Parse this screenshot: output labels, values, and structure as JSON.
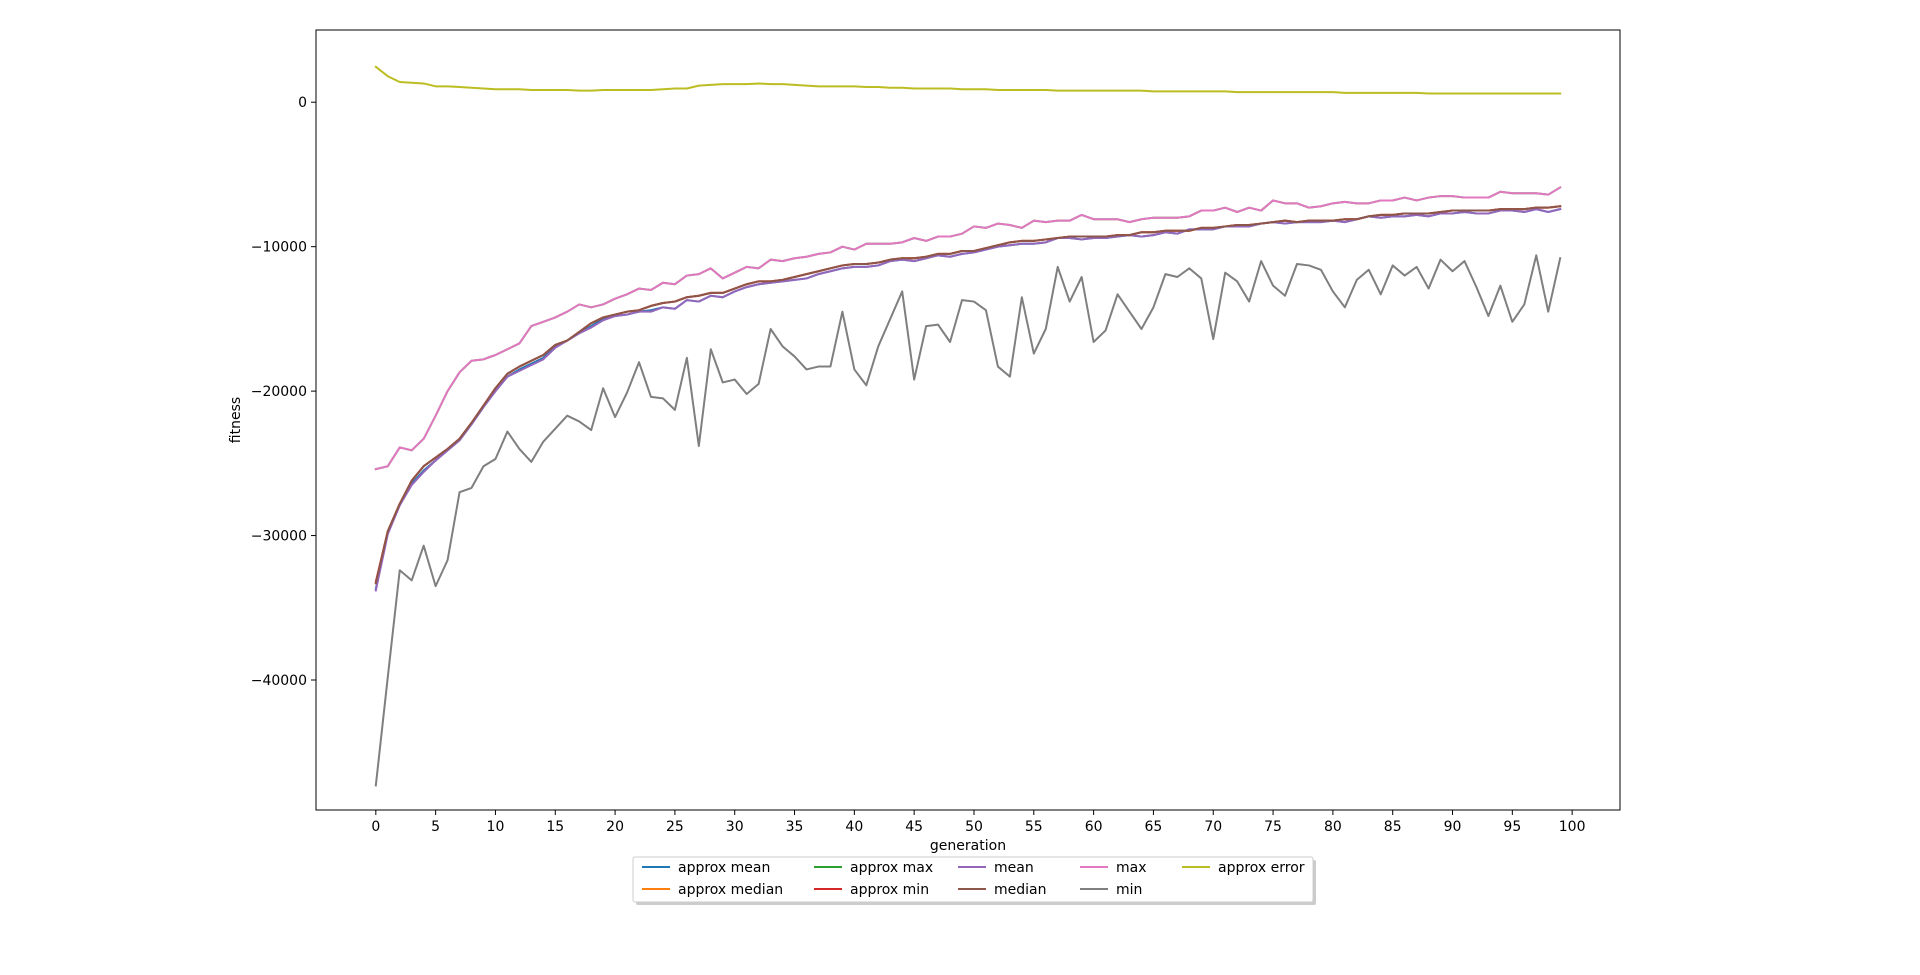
{
  "chart_data": {
    "type": "line",
    "xlabel": "generation",
    "ylabel": "fitness",
    "xlim": [
      -5,
      104
    ],
    "ylim": [
      -49000,
      5000
    ],
    "xticks": [
      0,
      5,
      10,
      15,
      20,
      25,
      30,
      35,
      40,
      45,
      50,
      55,
      60,
      65,
      70,
      75,
      80,
      85,
      90,
      95,
      100
    ],
    "xtick_labels": [
      "0",
      "5",
      "10",
      "15",
      "20",
      "25",
      "30",
      "35",
      "40",
      "45",
      "50",
      "55",
      "60",
      "65",
      "70",
      "75",
      "80",
      "85",
      "90",
      "95",
      "100"
    ],
    "yticks": [
      0,
      -10000,
      -20000,
      -30000,
      -40000
    ],
    "ytick_labels": [
      "0",
      "−10000",
      "−20000",
      "−30000",
      "−40000"
    ],
    "grid": false,
    "legend": {
      "placement": "bottom-center",
      "columns": 5
    },
    "series": [
      {
        "name": "approx mean",
        "color": "#1f77b4",
        "values": [
          -33700,
          -29800,
          -27900,
          -26400,
          -25500,
          -24800,
          -24100,
          -23400,
          -22300,
          -21100,
          -20000,
          -19000,
          -18500,
          -18100,
          -17700,
          -16900,
          -16500,
          -16000,
          -15500,
          -15000,
          -14800,
          -14700,
          -14500,
          -14400,
          -14200,
          -14300,
          -13700,
          -13800,
          -13400,
          -13500,
          -13100,
          -12800,
          -12600,
          -12500,
          -12400,
          -12300,
          -12200,
          -11900,
          -11700,
          -11500,
          -11400,
          -11400,
          -11300,
          -11000,
          -10900,
          -11000,
          -10800,
          -10600,
          -10700,
          -10500,
          -10400,
          -10200,
          -10000,
          -9900,
          -9800,
          -9800,
          -9700,
          -9400,
          -9400,
          -9500,
          -9400,
          -9400,
          -9300,
          -9200,
          -9300,
          -9200,
          -9000,
          -9100,
          -8800,
          -8800,
          -8800,
          -8600,
          -8600,
          -8600,
          -8400,
          -8300,
          -8400,
          -8300,
          -8300,
          -8300,
          -8200,
          -8300,
          -8100,
          -7900,
          -8000,
          -7900,
          -7900,
          -7800,
          -7900,
          -7700,
          -7700,
          -7600,
          -7700,
          -7700,
          -7500,
          -7500,
          -7600,
          -7400,
          -7600,
          -7400
        ]
      },
      {
        "name": "approx median",
        "color": "#ff7f0e",
        "values": [
          -33300,
          -29700,
          -27800,
          -26200,
          -25200,
          -24600,
          -24000,
          -23300,
          -22200,
          -21000,
          -19800,
          -18800,
          -18300,
          -17900,
          -17500,
          -16800,
          -16500,
          -15900,
          -15300,
          -14900,
          -14700,
          -14500,
          -14400,
          -14100,
          -13900,
          -13800,
          -13500,
          -13400,
          -13200,
          -13200,
          -12900,
          -12600,
          -12400,
          -12400,
          -12300,
          -12100,
          -11900,
          -11700,
          -11500,
          -11300,
          -11200,
          -11200,
          -11100,
          -10900,
          -10800,
          -10800,
          -10700,
          -10500,
          -10500,
          -10300,
          -10300,
          -10100,
          -9900,
          -9700,
          -9600,
          -9600,
          -9500,
          -9400,
          -9300,
          -9300,
          -9300,
          -9300,
          -9200,
          -9200,
          -9000,
          -9000,
          -8900,
          -8900,
          -8900,
          -8700,
          -8700,
          -8600,
          -8500,
          -8500,
          -8400,
          -8300,
          -8200,
          -8300,
          -8200,
          -8200,
          -8200,
          -8100,
          -8100,
          -7900,
          -7800,
          -7800,
          -7700,
          -7700,
          -7700,
          -7600,
          -7500,
          -7500,
          -7500,
          -7500,
          -7400,
          -7400,
          -7400,
          -7300,
          -7300,
          -7200
        ]
      },
      {
        "name": "approx max",
        "color": "#2ca02c",
        "values": [
          -25400,
          -25200,
          -23900,
          -24100,
          -23300,
          -21700,
          -20000,
          -18700,
          -17900,
          -17800,
          -17500,
          -17100,
          -16700,
          -15500,
          -15200,
          -14900,
          -14500,
          -14000,
          -14200,
          -14000,
          -13600,
          -13300,
          -12900,
          -13000,
          -12500,
          -12600,
          -12000,
          -11900,
          -11500,
          -12200,
          -11800,
          -11400,
          -11500,
          -10900,
          -11000,
          -10800,
          -10700,
          -10500,
          -10400,
          -10000,
          -10200,
          -9800,
          -9800,
          -9800,
          -9700,
          -9400,
          -9600,
          -9300,
          -9300,
          -9100,
          -8600,
          -8700,
          -8400,
          -8500,
          -8700,
          -8200,
          -8300,
          -8200,
          -8200,
          -7800,
          -8100,
          -8100,
          -8100,
          -8300,
          -8100,
          -8000,
          -8000,
          -8000,
          -7900,
          -7500,
          -7500,
          -7300,
          -7600,
          -7300,
          -7500,
          -6800,
          -7000,
          -7000,
          -7300,
          -7200,
          -7000,
          -6900,
          -7000,
          -7000,
          -6800,
          -6800,
          -6600,
          -6800,
          -6600,
          -6500,
          -6500,
          -6600,
          -6600,
          -6600,
          -6200,
          -6300,
          -6300,
          -6300,
          -6400,
          -5900
        ]
      },
      {
        "name": "approx min",
        "color": "#d62728",
        "values": [
          -33200,
          -29700,
          -27800,
          -26200,
          -25200,
          -24600,
          -24000,
          -23300,
          -22200,
          -21000,
          -19800,
          -18800,
          -18300,
          -17900,
          -17500,
          -16800,
          -16500,
          -15900,
          -15300,
          -14900,
          -14700,
          -14500,
          -14400,
          -14100,
          -13900,
          -13800,
          -13500,
          -13400,
          -13200,
          -13200,
          -12900,
          -12600,
          -12400,
          -12400,
          -12300,
          -12100,
          -11900,
          -11700,
          -11500,
          -11300,
          -11200,
          -11200,
          -11100,
          -10900,
          -10800,
          -10800,
          -10700,
          -10500,
          -10500,
          -10300,
          -10300,
          -10100,
          -9900,
          -9700,
          -9600,
          -9600,
          -9500,
          -9400,
          -9300,
          -9300,
          -9300,
          -9300,
          -9200,
          -9200,
          -9000,
          -9000,
          -8900,
          -8900,
          -8900,
          -8700,
          -8700,
          -8600,
          -8500,
          -8500,
          -8400,
          -8300,
          -8200,
          -8300,
          -8200,
          -8200,
          -8200,
          -8100,
          -8100,
          -7900,
          -7800,
          -7800,
          -7700,
          -7700,
          -7700,
          -7600,
          -7500,
          -7500,
          -7500,
          -7500,
          -7400,
          -7400,
          -7400,
          -7300,
          -7300,
          -7200
        ]
      },
      {
        "name": "mean",
        "color": "#9467bd",
        "values": [
          -33800,
          -29900,
          -27900,
          -26500,
          -25600,
          -24800,
          -24100,
          -23400,
          -22300,
          -21100,
          -20000,
          -19000,
          -18600,
          -18200,
          -17800,
          -17000,
          -16500,
          -16000,
          -15600,
          -15100,
          -14800,
          -14700,
          -14500,
          -14500,
          -14200,
          -14300,
          -13700,
          -13800,
          -13400,
          -13500,
          -13100,
          -12800,
          -12600,
          -12500,
          -12400,
          -12300,
          -12200,
          -11900,
          -11700,
          -11500,
          -11400,
          -11400,
          -11300,
          -11000,
          -10900,
          -11000,
          -10800,
          -10600,
          -10700,
          -10500,
          -10400,
          -10200,
          -10000,
          -9900,
          -9800,
          -9800,
          -9700,
          -9400,
          -9400,
          -9500,
          -9400,
          -9400,
          -9300,
          -9200,
          -9300,
          -9200,
          -9000,
          -9100,
          -8800,
          -8800,
          -8800,
          -8600,
          -8600,
          -8600,
          -8400,
          -8300,
          -8400,
          -8300,
          -8300,
          -8300,
          -8200,
          -8300,
          -8100,
          -7900,
          -8000,
          -7900,
          -7900,
          -7800,
          -7900,
          -7700,
          -7700,
          -7600,
          -7700,
          -7700,
          -7500,
          -7500,
          -7600,
          -7400,
          -7600,
          -7400
        ]
      },
      {
        "name": "median",
        "color": "#8c564b",
        "values": [
          -33300,
          -29700,
          -27800,
          -26200,
          -25200,
          -24600,
          -24000,
          -23300,
          -22200,
          -21000,
          -19800,
          -18800,
          -18300,
          -17900,
          -17500,
          -16800,
          -16500,
          -15900,
          -15300,
          -14900,
          -14700,
          -14500,
          -14400,
          -14100,
          -13900,
          -13800,
          -13500,
          -13400,
          -13200,
          -13200,
          -12900,
          -12600,
          -12400,
          -12400,
          -12300,
          -12100,
          -11900,
          -11700,
          -11500,
          -11300,
          -11200,
          -11200,
          -11100,
          -10900,
          -10800,
          -10800,
          -10700,
          -10500,
          -10500,
          -10300,
          -10300,
          -10100,
          -9900,
          -9700,
          -9600,
          -9600,
          -9500,
          -9400,
          -9300,
          -9300,
          -9300,
          -9300,
          -9200,
          -9200,
          -9000,
          -9000,
          -8900,
          -8900,
          -8900,
          -8700,
          -8700,
          -8600,
          -8500,
          -8500,
          -8400,
          -8300,
          -8200,
          -8300,
          -8200,
          -8200,
          -8200,
          -8100,
          -8100,
          -7900,
          -7800,
          -7800,
          -7700,
          -7700,
          -7700,
          -7600,
          -7500,
          -7500,
          -7500,
          -7500,
          -7400,
          -7400,
          -7400,
          -7300,
          -7300,
          -7200
        ]
      },
      {
        "name": "max",
        "color": "#e377c2",
        "values": [
          -25400,
          -25200,
          -23900,
          -24100,
          -23300,
          -21700,
          -20000,
          -18700,
          -17900,
          -17800,
          -17500,
          -17100,
          -16700,
          -15500,
          -15200,
          -14900,
          -14500,
          -14000,
          -14200,
          -14000,
          -13600,
          -13300,
          -12900,
          -13000,
          -12500,
          -12600,
          -12000,
          -11900,
          -11500,
          -12200,
          -11800,
          -11400,
          -11500,
          -10900,
          -11000,
          -10800,
          -10700,
          -10500,
          -10400,
          -10000,
          -10200,
          -9800,
          -9800,
          -9800,
          -9700,
          -9400,
          -9600,
          -9300,
          -9300,
          -9100,
          -8600,
          -8700,
          -8400,
          -8500,
          -8700,
          -8200,
          -8300,
          -8200,
          -8200,
          -7800,
          -8100,
          -8100,
          -8100,
          -8300,
          -8100,
          -8000,
          -8000,
          -8000,
          -7900,
          -7500,
          -7500,
          -7300,
          -7600,
          -7300,
          -7500,
          -6800,
          -7000,
          -7000,
          -7300,
          -7200,
          -7000,
          -6900,
          -7000,
          -7000,
          -6800,
          -6800,
          -6600,
          -6800,
          -6600,
          -6500,
          -6500,
          -6600,
          -6600,
          -6600,
          -6200,
          -6300,
          -6300,
          -6300,
          -6400,
          -5900
        ]
      },
      {
        "name": "min",
        "color": "#7f7f7f",
        "values": [
          -47300,
          -39800,
          -32400,
          -33100,
          -30700,
          -33500,
          -31700,
          -27000,
          -26700,
          -25200,
          -24700,
          -22800,
          -24000,
          -24900,
          -23500,
          -22600,
          -21700,
          -22100,
          -22700,
          -19800,
          -21800,
          -20100,
          -18000,
          -20400,
          -20500,
          -21300,
          -17700,
          -23800,
          -17100,
          -19400,
          -19200,
          -20200,
          -19500,
          -15700,
          -16900,
          -17600,
          -18500,
          -18300,
          -18300,
          -14500,
          -18500,
          -19600,
          -16900,
          -15000,
          -13100,
          -19200,
          -15500,
          -15400,
          -16600,
          -13700,
          -13800,
          -14400,
          -18300,
          -19000,
          -13500,
          -17400,
          -15700,
          -11400,
          -13800,
          -12100,
          -16600,
          -15800,
          -13300,
          -14500,
          -15700,
          -14200,
          -11900,
          -12100,
          -11500,
          -12200,
          -16400,
          -11800,
          -12400,
          -13800,
          -11000,
          -12700,
          -13400,
          -11200,
          -11300,
          -11600,
          -13100,
          -14200,
          -12300,
          -11600,
          -13300,
          -11300,
          -12000,
          -11400,
          -12900,
          -10900,
          -11700,
          -11000,
          -12800,
          -14800,
          -12700,
          -15200,
          -14000,
          -10600,
          -14500,
          -10800
        ]
      },
      {
        "name": "approx error",
        "color": "#bcbd22",
        "values": [
          2450,
          1800,
          1400,
          1350,
          1300,
          1100,
          1100,
          1050,
          1000,
          950,
          900,
          900,
          900,
          850,
          850,
          850,
          850,
          800,
          800,
          850,
          850,
          850,
          850,
          850,
          900,
          950,
          950,
          1150,
          1200,
          1250,
          1250,
          1250,
          1300,
          1250,
          1250,
          1200,
          1150,
          1100,
          1100,
          1100,
          1100,
          1050,
          1050,
          1000,
          1000,
          950,
          950,
          950,
          950,
          900,
          900,
          900,
          850,
          850,
          850,
          850,
          850,
          800,
          800,
          800,
          800,
          800,
          800,
          800,
          800,
          750,
          750,
          750,
          750,
          750,
          750,
          750,
          700,
          700,
          700,
          700,
          700,
          700,
          700,
          700,
          700,
          650,
          650,
          650,
          650,
          650,
          650,
          650,
          600,
          600,
          600,
          600,
          600,
          600,
          600,
          600,
          600,
          600,
          600,
          600
        ]
      }
    ]
  }
}
